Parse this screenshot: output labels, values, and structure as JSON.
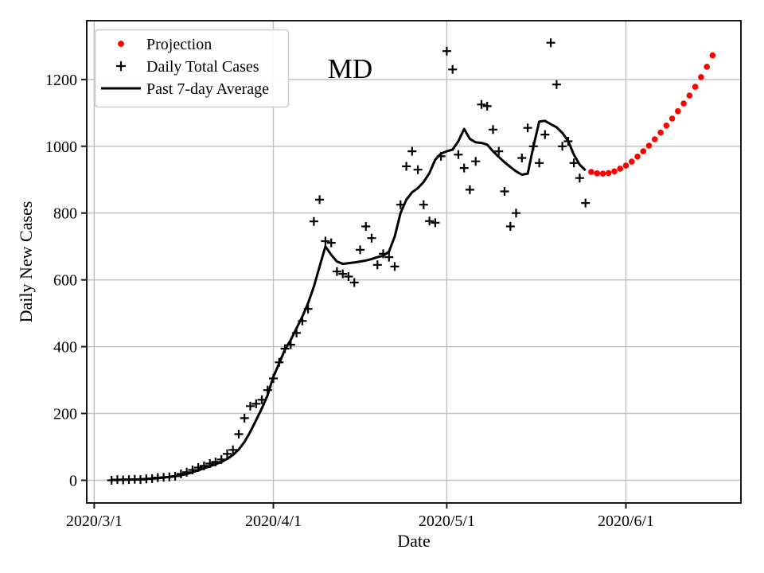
{
  "figure": {
    "title": "MD",
    "xlabel": "Date",
    "ylabel": "Daily New Cases"
  },
  "legend": {
    "position": "upper-left",
    "items": [
      {
        "label": "Projection",
        "marker": "red-dot",
        "color": "#ff0000"
      },
      {
        "label": "Daily Total Cases",
        "marker": "plus",
        "color": "#000000"
      },
      {
        "label": "Past 7-day Average",
        "marker": "line",
        "color": "#000000"
      }
    ]
  },
  "chart_data": {
    "type": "scatter",
    "title": "MD",
    "xlabel": "Date",
    "ylabel": "Daily New Cases",
    "grid": true,
    "grid_color": "#c3c3c3",
    "x_ticks": [
      {
        "label": "2020/3/1",
        "day": 0
      },
      {
        "label": "2020/4/1",
        "day": 31
      },
      {
        "label": "2020/5/1",
        "day": 61
      },
      {
        "label": "2020/6/1",
        "day": 92
      }
    ],
    "y_ticks": [
      0,
      200,
      400,
      600,
      800,
      1000,
      1200
    ],
    "xlim_days": [
      -1.3,
      111.9
    ],
    "ylim": [
      -68,
      1376
    ],
    "series_colors": {
      "projection": "#ff0000",
      "daily_total_cases": "#000000",
      "past_7day_average": "#000000"
    },
    "daily_dates": [
      "2020/3/4",
      "2020/3/5",
      "2020/3/6",
      "2020/3/7",
      "2020/3/8",
      "2020/3/9",
      "2020/3/10",
      "2020/3/11",
      "2020/3/12",
      "2020/3/13",
      "2020/3/14",
      "2020/3/15",
      "2020/3/16",
      "2020/3/17",
      "2020/3/18",
      "2020/3/19",
      "2020/3/20",
      "2020/3/21",
      "2020/3/22",
      "2020/3/23",
      "2020/3/24",
      "2020/3/25",
      "2020/3/26",
      "2020/3/27",
      "2020/3/28",
      "2020/3/29",
      "2020/3/30",
      "2020/3/31",
      "2020/4/1",
      "2020/4/2",
      "2020/4/3",
      "2020/4/4",
      "2020/4/5",
      "2020/4/6",
      "2020/4/7",
      "2020/4/8",
      "2020/4/9",
      "2020/4/10",
      "2020/4/11",
      "2020/4/12",
      "2020/4/13",
      "2020/4/14",
      "2020/4/15",
      "2020/4/16",
      "2020/4/17",
      "2020/4/18",
      "2020/4/19",
      "2020/4/20",
      "2020/4/21",
      "2020/4/22",
      "2020/4/23",
      "2020/4/24",
      "2020/4/25",
      "2020/4/26",
      "2020/4/27",
      "2020/4/28",
      "2020/4/29",
      "2020/4/30",
      "2020/5/1",
      "2020/5/2",
      "2020/5/3",
      "2020/5/4",
      "2020/5/5",
      "2020/5/6",
      "2020/5/7",
      "2020/5/8",
      "2020/5/9",
      "2020/5/10",
      "2020/5/11",
      "2020/5/12",
      "2020/5/13",
      "2020/5/14",
      "2020/5/15",
      "2020/5/16",
      "2020/5/17",
      "2020/5/18",
      "2020/5/19",
      "2020/5/20",
      "2020/5/21",
      "2020/5/22",
      "2020/5/23",
      "2020/5/24",
      "2020/5/25"
    ],
    "daily_total_cases": [
      0,
      2,
      1,
      2,
      3,
      2,
      4,
      5,
      8,
      9,
      10,
      12,
      19,
      24,
      31,
      38,
      43,
      50,
      55,
      62,
      79,
      91,
      138,
      186,
      222,
      229,
      241,
      270,
      305,
      353,
      394,
      406,
      441,
      477,
      513,
      775,
      840,
      716,
      711,
      625,
      618,
      610,
      592,
      690,
      760,
      725,
      645,
      678,
      668,
      640,
      825,
      940,
      985,
      930,
      825,
      776,
      771,
      970,
      1285,
      1230,
      975,
      935,
      870,
      955,
      1125,
      1120,
      1050,
      985,
      865,
      760,
      800,
      965,
      1055,
      1000,
      950,
      1035,
      1310,
      1185,
      1000,
      1015,
      950,
      905,
      830
    ],
    "past_7day_average": [
      1,
      1,
      2,
      2,
      2,
      3,
      4,
      5,
      6,
      8,
      10,
      12,
      15,
      19,
      24,
      30,
      36,
      42,
      48,
      55,
      64,
      76,
      92,
      115,
      145,
      180,
      215,
      255,
      310,
      350,
      392,
      420,
      455,
      490,
      530,
      580,
      640,
      700,
      675,
      655,
      648,
      650,
      652,
      655,
      658,
      662,
      668,
      672,
      685,
      730,
      800,
      840,
      862,
      875,
      893,
      920,
      960,
      978,
      985,
      990,
      1015,
      1052,
      1022,
      1012,
      1010,
      1005,
      985,
      968,
      952,
      938,
      925,
      915,
      918,
      1000,
      1074,
      1076,
      1066,
      1057,
      1040,
      1016,
      975,
      945,
      928
    ],
    "projection_dates": [
      "2020/5/26",
      "2020/5/27",
      "2020/5/28",
      "2020/5/29",
      "2020/5/30",
      "2020/5/31",
      "2020/6/1",
      "2020/6/2",
      "2020/6/3",
      "2020/6/4",
      "2020/6/5",
      "2020/6/6",
      "2020/6/7",
      "2020/6/8",
      "2020/6/9",
      "2020/6/10",
      "2020/6/11",
      "2020/6/12",
      "2020/6/13",
      "2020/6/14",
      "2020/6/15",
      "2020/6/16"
    ],
    "projection_values": [
      923,
      919,
      918,
      920,
      925,
      933,
      942,
      954,
      969,
      985,
      1002,
      1021,
      1041,
      1062,
      1083,
      1105,
      1128,
      1152,
      1178,
      1207,
      1238,
      1272
    ]
  }
}
